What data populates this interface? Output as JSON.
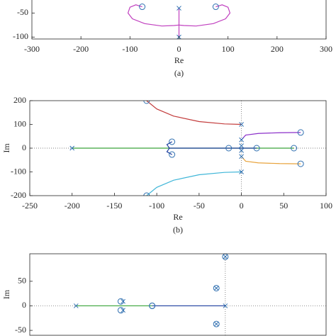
{
  "chart_data": [
    {
      "type": "line",
      "xlabel": "Re",
      "caption": "(a)",
      "xlim": [
        -300,
        300
      ],
      "xticks": [
        -300,
        -200,
        -100,
        0,
        100,
        200,
        300
      ],
      "ylim": [
        -104,
        -20
      ],
      "yticks": [
        -100,
        -50
      ],
      "zero_lines": false,
      "marker_color": "#2f6fb0",
      "series": [
        {
          "color": "#c03fbf",
          "x": [
            -75,
            -88,
            -100,
            -104,
            -95,
            -70,
            -35,
            -10,
            0,
            10,
            35,
            70,
            95,
            104,
            100,
            88,
            75
          ],
          "values": [
            -37,
            -33,
            -38,
            -50,
            -62,
            -72,
            -77,
            -76,
            -75,
            -76,
            -77,
            -72,
            -62,
            -50,
            -38,
            -33,
            -37
          ]
        },
        {
          "color": "#c03fbf",
          "x": [
            0,
            0
          ],
          "values": [
            -40,
            -100
          ]
        }
      ],
      "poles": {
        "x": [
          0,
          0
        ],
        "values": [
          -40,
          -100
        ]
      },
      "zeros": {
        "x": [
          -75,
          75
        ],
        "values": [
          -37,
          -37
        ]
      }
    },
    {
      "type": "line",
      "xlabel": "Re",
      "ylabel": "Im",
      "caption": "(b)",
      "xlim": [
        -250,
        100
      ],
      "xticks": [
        -250,
        -200,
        -150,
        -100,
        -50,
        0,
        50,
        100
      ],
      "ylim": [
        -200,
        200
      ],
      "yticks": [
        -200,
        -100,
        0,
        100,
        200
      ],
      "zero_lines": true,
      "marker_color": "#2f6fb0",
      "series": [
        {
          "color": "#c33c3c",
          "x": [
            0,
            -20,
            -50,
            -80,
            -100,
            -112
          ],
          "values": [
            100,
            102,
            112,
            135,
            165,
            200
          ]
        },
        {
          "color": "#3fb6d8",
          "x": [
            0,
            -20,
            -50,
            -80,
            -100,
            -112
          ],
          "values": [
            -100,
            -102,
            -112,
            -135,
            -165,
            -200
          ]
        },
        {
          "color": "#8b2fc9",
          "x": [
            0,
            5,
            20,
            45,
            70
          ],
          "values": [
            35,
            55,
            62,
            65,
            66
          ]
        },
        {
          "color": "#e8a33c",
          "x": [
            0,
            5,
            20,
            45,
            70
          ],
          "values": [
            -35,
            -55,
            -62,
            -65,
            -66
          ]
        },
        {
          "color": "#3aa53a",
          "x": [
            -200,
            62
          ],
          "values": [
            0,
            0
          ]
        },
        {
          "color": "#1f3f9f",
          "x": [
            -82,
            -88,
            -85,
            -88,
            -82
          ],
          "values": [
            27,
            15,
            0,
            -15,
            -27
          ]
        },
        {
          "color": "#1f3f9f",
          "x": [
            -85,
            18
          ],
          "values": [
            0,
            0
          ]
        }
      ],
      "poles": {
        "x": [
          -200,
          0,
          0,
          0,
          0,
          0,
          0
        ],
        "values": [
          0,
          100,
          -100,
          35,
          -35,
          10,
          -10
        ]
      },
      "zeros": {
        "x": [
          -112,
          -112,
          70,
          70,
          -82,
          -82,
          62,
          -15,
          18
        ],
        "values": [
          200,
          -200,
          66,
          -66,
          27,
          -27,
          0,
          0,
          0
        ]
      }
    },
    {
      "type": "line",
      "ylabel": "Im",
      "xlim": [
        -262,
        135
      ],
      "ylim": [
        -60,
        106
      ],
      "yticks": [
        -50,
        0,
        50
      ],
      "zero_lines": true,
      "marker_color": "#2f6fb0",
      "series": [
        {
          "color": "#3aa53a",
          "x": [
            -200,
            -98
          ],
          "values": [
            0,
            0
          ]
        },
        {
          "color": "#1f3f9f",
          "x": [
            -98,
            0
          ],
          "values": [
            0,
            0
          ]
        }
      ],
      "poles": {
        "x": [
          -200,
          0,
          0,
          -137,
          -137,
          -12,
          -12
        ],
        "values": [
          0,
          0,
          100,
          9,
          -9,
          36,
          -37
        ]
      },
      "zeros": {
        "x": [
          0,
          -140,
          -140,
          -98,
          -98,
          -12,
          -12
        ],
        "values": [
          100,
          9,
          -9,
          0,
          0,
          36,
          -37
        ]
      }
    }
  ]
}
